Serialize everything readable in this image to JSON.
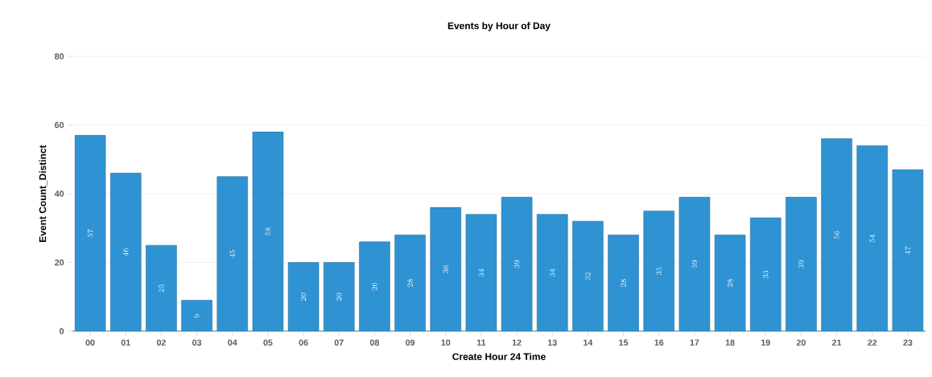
{
  "chart_data": {
    "type": "bar",
    "title": "Events by Hour of Day",
    "xlabel": "Create Hour 24 Time",
    "ylabel": "Event Count_Distinct",
    "categories": [
      "00",
      "01",
      "02",
      "03",
      "04",
      "05",
      "06",
      "07",
      "08",
      "09",
      "10",
      "11",
      "12",
      "13",
      "14",
      "15",
      "16",
      "17",
      "18",
      "19",
      "20",
      "21",
      "22",
      "23"
    ],
    "values": [
      57,
      46,
      25,
      9,
      45,
      58,
      20,
      20,
      26,
      28,
      36,
      34,
      39,
      34,
      32,
      28,
      35,
      39,
      28,
      33,
      39,
      56,
      54,
      47
    ],
    "color": "#2f93d3",
    "ylim": [
      0,
      80
    ],
    "yticks": [
      0,
      20,
      40,
      60,
      80
    ],
    "grid": "y",
    "data_labels": true
  }
}
